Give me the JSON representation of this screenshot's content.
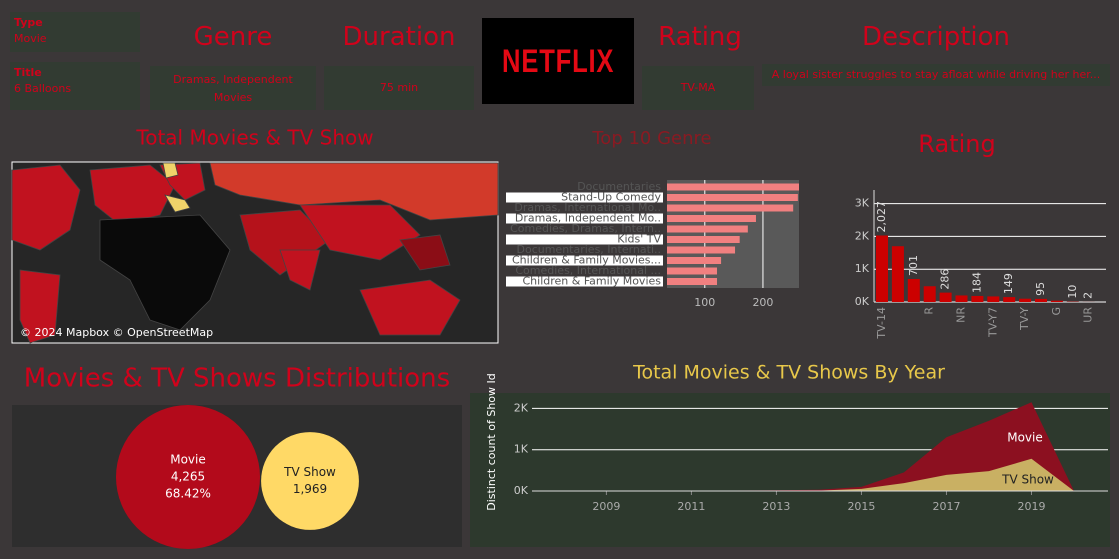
{
  "header": {
    "type_label": "Type",
    "type": "Movie",
    "title_label": "Title",
    "title": "6 Balloons",
    "genre_label": "Genre",
    "genre": "Dramas, Independent Movies",
    "duration_label": "Duration",
    "duration": "75 min",
    "logo": "NETFLIX",
    "rating_label": "Rating",
    "rating": "TV-MA",
    "description_label": "Description",
    "description": "A loyal sister struggles to stay afloat while driving her her..."
  },
  "map": {
    "title": "Total Movies & TV Show",
    "attribution": "© 2024 Mapbox © OpenStreetMap"
  },
  "chart_data": [
    {
      "type": "hbar",
      "title": "Top 10 Genre",
      "categories": [
        "Documentaries",
        "Stand-Up Comedy",
        "Dramas, International Mo..",
        "Dramas, Independent Mo..",
        "Comedies, Dramas, Intern..",
        "Kids' TV",
        "Documentaries, Internati..",
        "Children & Family Movies...",
        "Comedies, International ...",
        "Children & Family Movies"
      ],
      "values": [
        262,
        260,
        252,
        188,
        174,
        160,
        152,
        128,
        121,
        121
      ],
      "color": "#f08080",
      "xlim": [
        35,
        262
      ],
      "xticks": [
        100,
        200
      ],
      "grid": true
    },
    {
      "type": "bar",
      "title": "Rating",
      "categories": [
        "TV-14",
        null,
        null,
        "R",
        null,
        "NR",
        null,
        "TV-Y7",
        null,
        "TV-Y",
        null,
        "G",
        null,
        "UR"
      ],
      "values": [
        2027,
        1700,
        701,
        480,
        286,
        200,
        184,
        170,
        149,
        100,
        95,
        40,
        10,
        2
      ],
      "value_labels": [
        "2,027",
        null,
        "701",
        null,
        "286",
        null,
        "184",
        null,
        "149",
        null,
        "95",
        null,
        "10",
        "2"
      ],
      "color": "#cc0000",
      "ylim": [
        0,
        3200
      ],
      "yticks": [
        {
          "value": 0,
          "label": "0K"
        },
        {
          "value": 1000,
          "label": "1K"
        },
        {
          "value": 2000,
          "label": "2K"
        },
        {
          "value": 3000,
          "label": "3K"
        }
      ],
      "grid": true
    },
    {
      "type": "bubble",
      "title": "Movies & TV Shows Distributions",
      "categories": [
        "Movie",
        "TV Show"
      ],
      "values": [
        4265,
        1969
      ],
      "value_labels": [
        "4,265",
        "1,969"
      ],
      "shares": [
        68.42,
        null
      ],
      "share_labels": [
        "68.42%",
        null
      ],
      "colors": [
        "#b30a1b",
        "#ffd966"
      ]
    },
    {
      "type": "area",
      "title": "Total Movies & TV Shows By Year",
      "y_label": "Distinct count of Show Id",
      "x": [
        2008,
        2009,
        2010,
        2011,
        2012,
        2013,
        2014,
        2015,
        2016,
        2017,
        2018,
        2019,
        2020
      ],
      "series": [
        {
          "name": "Movie",
          "color": "#8c1020",
          "values": [
            2,
            3,
            5,
            8,
            12,
            18,
            30,
            100,
            450,
            1300,
            1700,
            2150,
            0
          ]
        },
        {
          "name": "TV Show",
          "color": "#c9b063",
          "values": [
            0,
            1,
            1,
            2,
            3,
            5,
            10,
            50,
            190,
            390,
            480,
            780,
            0
          ]
        }
      ],
      "xlim": [
        2007.25,
        2020.8
      ],
      "xticks": [
        2009,
        2011,
        2013,
        2015,
        2017,
        2019
      ],
      "ylim": [
        0,
        2300
      ],
      "yticks": [
        {
          "value": 0,
          "label": "0K"
        },
        {
          "value": 1000,
          "label": "1K"
        },
        {
          "value": 2000,
          "label": "2K"
        }
      ],
      "grid": true
    }
  ]
}
